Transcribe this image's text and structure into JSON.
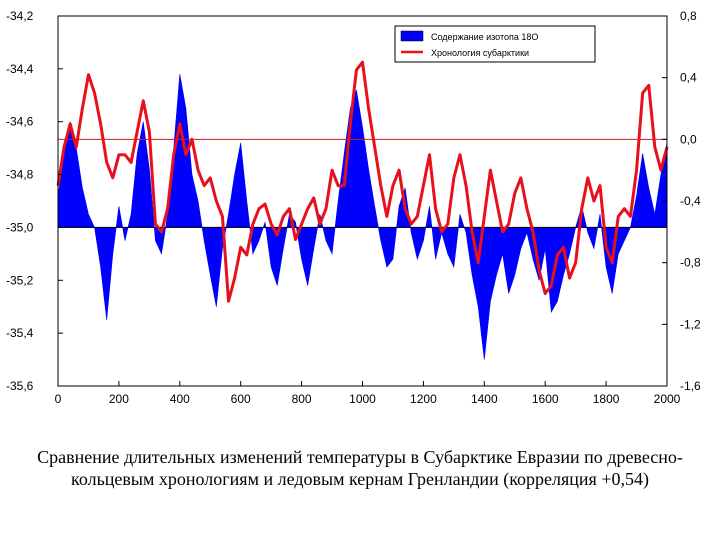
{
  "chart_data": {
    "type": "area",
    "caption": "Сравнение длительных изменений температуры в Субарктике Евразии по древесно-кольцевым хронологиям и ледовым кернам Гренландии (корреляция +0,54)",
    "x_ticks": [
      "0",
      "200",
      "400",
      "600",
      "800",
      "1000",
      "1200",
      "1400",
      "1600",
      "1800",
      "2000"
    ],
    "xlim": [
      0,
      2000
    ],
    "y_left_ticks": [
      "-34,2",
      "-34,4",
      "-34,6",
      "-34,8",
      "-35,0",
      "-35,2",
      "-35,4",
      "-35,6"
    ],
    "y_left_lim": [
      -35.6,
      -34.2
    ],
    "y_right_ticks": [
      "0,8",
      "0,4",
      "0,0",
      "-0,4",
      "-0,8",
      "-1,2",
      "-1,6"
    ],
    "y_right_lim": [
      -1.6,
      0.8
    ],
    "grid": false,
    "legend_position": "top-right",
    "colors": {
      "isotope": "#0000ff",
      "chronology": "#e8101a",
      "reference_line": "#c81e1e"
    },
    "series": [
      {
        "name": "Содержание изотопа 18О",
        "axis": "left",
        "kind": "filled-area",
        "baseline": -35.0,
        "x": [
          0,
          20,
          40,
          60,
          80,
          100,
          120,
          140,
          160,
          180,
          200,
          220,
          240,
          260,
          280,
          300,
          320,
          340,
          360,
          380,
          400,
          420,
          440,
          460,
          480,
          500,
          520,
          540,
          560,
          580,
          600,
          620,
          640,
          660,
          680,
          700,
          720,
          740,
          760,
          780,
          800,
          820,
          840,
          860,
          880,
          900,
          920,
          940,
          960,
          980,
          1000,
          1020,
          1040,
          1060,
          1080,
          1100,
          1120,
          1140,
          1160,
          1180,
          1200,
          1220,
          1240,
          1260,
          1280,
          1300,
          1320,
          1340,
          1360,
          1380,
          1400,
          1420,
          1440,
          1460,
          1480,
          1500,
          1520,
          1540,
          1560,
          1580,
          1600,
          1620,
          1640,
          1660,
          1680,
          1700,
          1720,
          1740,
          1760,
          1780,
          1800,
          1820,
          1840,
          1860,
          1880,
          1900,
          1920,
          1940,
          1960,
          1980,
          2000
        ],
        "values": [
          -34.88,
          -34.72,
          -34.6,
          -34.7,
          -34.85,
          -34.95,
          -35.0,
          -35.15,
          -35.35,
          -35.1,
          -34.92,
          -35.05,
          -34.95,
          -34.72,
          -34.6,
          -34.78,
          -35.05,
          -35.1,
          -34.95,
          -34.7,
          -34.42,
          -34.55,
          -34.8,
          -34.9,
          -35.05,
          -35.18,
          -35.3,
          -35.08,
          -34.95,
          -34.8,
          -34.68,
          -34.9,
          -35.1,
          -35.05,
          -34.98,
          -35.15,
          -35.22,
          -35.08,
          -34.95,
          -34.98,
          -35.12,
          -35.22,
          -35.08,
          -34.95,
          -35.05,
          -35.1,
          -34.9,
          -34.72,
          -34.55,
          -34.48,
          -34.62,
          -34.78,
          -34.92,
          -35.05,
          -35.15,
          -35.12,
          -34.92,
          -34.85,
          -35.02,
          -35.12,
          -35.05,
          -34.92,
          -35.12,
          -35.02,
          -35.1,
          -35.15,
          -34.95,
          -35.02,
          -35.18,
          -35.3,
          -35.5,
          -35.28,
          -35.18,
          -35.1,
          -35.25,
          -35.18,
          -35.08,
          -35.02,
          -35.12,
          -35.2,
          -35.08,
          -35.32,
          -35.28,
          -35.18,
          -35.1,
          -35.0,
          -34.92,
          -35.02,
          -35.08,
          -34.95,
          -35.15,
          -35.25,
          -35.1,
          -35.05,
          -35.0,
          -34.88,
          -34.72,
          -34.85,
          -34.95,
          -34.8,
          -34.68
        ]
      },
      {
        "name": "Хронология субарктики",
        "axis": "right",
        "kind": "line",
        "x": [
          0,
          20,
          40,
          60,
          80,
          100,
          120,
          140,
          160,
          180,
          200,
          220,
          240,
          260,
          280,
          300,
          320,
          340,
          360,
          380,
          400,
          420,
          440,
          460,
          480,
          500,
          520,
          540,
          560,
          580,
          600,
          620,
          640,
          660,
          680,
          700,
          720,
          740,
          760,
          780,
          800,
          820,
          840,
          860,
          880,
          900,
          920,
          940,
          960,
          980,
          1000,
          1020,
          1040,
          1060,
          1080,
          1100,
          1120,
          1140,
          1160,
          1180,
          1200,
          1220,
          1240,
          1260,
          1280,
          1300,
          1320,
          1340,
          1360,
          1380,
          1400,
          1420,
          1440,
          1460,
          1480,
          1500,
          1520,
          1540,
          1560,
          1580,
          1600,
          1620,
          1640,
          1660,
          1680,
          1700,
          1720,
          1740,
          1760,
          1780,
          1800,
          1820,
          1840,
          1860,
          1880,
          1900,
          1920,
          1940,
          1960,
          1980,
          2000
        ],
        "values": [
          -0.3,
          -0.05,
          0.1,
          -0.05,
          0.2,
          0.42,
          0.3,
          0.1,
          -0.15,
          -0.25,
          -0.1,
          -0.1,
          -0.15,
          0.05,
          0.25,
          0.05,
          -0.55,
          -0.6,
          -0.45,
          -0.1,
          0.1,
          -0.1,
          0.0,
          -0.2,
          -0.3,
          -0.25,
          -0.4,
          -0.5,
          -1.05,
          -0.9,
          -0.7,
          -0.75,
          -0.55,
          -0.45,
          -0.42,
          -0.55,
          -0.62,
          -0.5,
          -0.45,
          -0.65,
          -0.55,
          -0.45,
          -0.38,
          -0.55,
          -0.45,
          -0.2,
          -0.3,
          -0.3,
          0.1,
          0.45,
          0.5,
          0.2,
          -0.05,
          -0.3,
          -0.5,
          -0.3,
          -0.2,
          -0.45,
          -0.55,
          -0.5,
          -0.3,
          -0.1,
          -0.45,
          -0.6,
          -0.55,
          -0.25,
          -0.1,
          -0.3,
          -0.6,
          -0.8,
          -0.5,
          -0.2,
          -0.4,
          -0.6,
          -0.55,
          -0.35,
          -0.25,
          -0.45,
          -0.6,
          -0.85,
          -1.0,
          -0.95,
          -0.75,
          -0.7,
          -0.9,
          -0.8,
          -0.45,
          -0.25,
          -0.4,
          -0.3,
          -0.7,
          -0.8,
          -0.5,
          -0.45,
          -0.5,
          -0.2,
          0.3,
          0.35,
          -0.05,
          -0.2,
          -0.05
        ]
      }
    ],
    "reference_line": {
      "axis": "right",
      "value": 0.0
    }
  }
}
